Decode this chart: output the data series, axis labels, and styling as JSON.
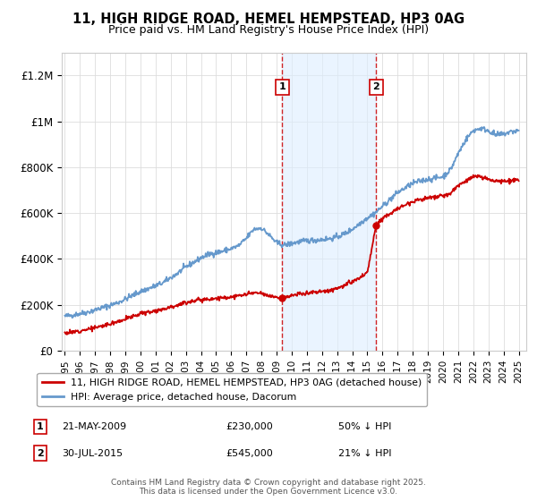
{
  "title": "11, HIGH RIDGE ROAD, HEMEL HEMPSTEAD, HP3 0AG",
  "subtitle": "Price paid vs. HM Land Registry's House Price Index (HPI)",
  "ylabel_ticks": [
    "£0",
    "£200K",
    "£400K",
    "£600K",
    "£800K",
    "£1M",
    "£1.2M"
  ],
  "ytick_values": [
    0,
    200000,
    400000,
    600000,
    800000,
    1000000,
    1200000
  ],
  "ylim": [
    0,
    1300000
  ],
  "xlim_start": 1994.8,
  "xlim_end": 2025.5,
  "red_line_color": "#cc0000",
  "blue_line_color": "#6699cc",
  "blue_fill_color": "#ddeeff",
  "transaction1_x": 2009.37,
  "transaction1_y": 230000,
  "transaction2_x": 2015.58,
  "transaction2_y": 545000,
  "legend_red_label": "11, HIGH RIDGE ROAD, HEMEL HEMPSTEAD, HP3 0AG (detached house)",
  "legend_blue_label": "HPI: Average price, detached house, Dacorum",
  "table_data": [
    {
      "num": "1",
      "date": "21-MAY-2009",
      "price": "£230,000",
      "pct": "50% ↓ HPI"
    },
    {
      "num": "2",
      "date": "30-JUL-2015",
      "price": "£545,000",
      "pct": "21% ↓ HPI"
    }
  ],
  "footer": "Contains HM Land Registry data © Crown copyright and database right 2025.\nThis data is licensed under the Open Government Licence v3.0.",
  "background_color": "#ffffff",
  "hpi_years": [
    1995,
    1995.5,
    1996,
    1996.5,
    1997,
    1997.5,
    1998,
    1998.5,
    1999,
    1999.5,
    2000,
    2000.5,
    2001,
    2001.5,
    2002,
    2002.5,
    2003,
    2003.5,
    2004,
    2004.5,
    2005,
    2005.5,
    2006,
    2006.5,
    2007,
    2007.5,
    2008,
    2008.5,
    2009,
    2009.5,
    2010,
    2010.5,
    2011,
    2011.5,
    2012,
    2012.5,
    2013,
    2013.5,
    2014,
    2014.5,
    2015,
    2015.5,
    2016,
    2016.5,
    2017,
    2017.5,
    2018,
    2018.5,
    2019,
    2019.5,
    2020,
    2020.5,
    2021,
    2021.5,
    2022,
    2022.5,
    2023,
    2023.5,
    2024,
    2024.5,
    2025
  ],
  "hpi_vals": [
    150000,
    155000,
    162000,
    168000,
    178000,
    188000,
    198000,
    210000,
    225000,
    242000,
    258000,
    270000,
    283000,
    296000,
    318000,
    340000,
    365000,
    385000,
    405000,
    420000,
    428000,
    435000,
    445000,
    458000,
    490000,
    530000,
    535000,
    505000,
    470000,
    460000,
    468000,
    475000,
    480000,
    482000,
    485000,
    488000,
    496000,
    510000,
    530000,
    555000,
    580000,
    600000,
    630000,
    660000,
    690000,
    710000,
    730000,
    740000,
    748000,
    752000,
    760000,
    790000,
    860000,
    920000,
    960000,
    970000,
    960000,
    940000,
    945000,
    955000,
    960000
  ],
  "red_years": [
    1995,
    1995.5,
    1996,
    1996.5,
    1997,
    1997.5,
    1998,
    1998.5,
    1999,
    1999.5,
    2000,
    2000.5,
    2001,
    2001.5,
    2002,
    2002.5,
    2003,
    2003.5,
    2004,
    2004.5,
    2005,
    2005.5,
    2006,
    2006.5,
    2007,
    2007.5,
    2008,
    2008.5,
    2009.0,
    2009.37,
    2009.38,
    2009.5,
    2010,
    2010.5,
    2011,
    2011.5,
    2012,
    2012.5,
    2013,
    2013.5,
    2014,
    2014.5,
    2015.0,
    2015.57,
    2015.58,
    2016,
    2016.5,
    2017,
    2017.5,
    2018,
    2018.5,
    2019,
    2019.5,
    2020,
    2020.5,
    2021,
    2021.5,
    2022,
    2022.5,
    2023,
    2023.5,
    2024,
    2024.5,
    2025
  ],
  "red_vals": [
    78000,
    80000,
    88000,
    94000,
    100000,
    108000,
    118000,
    128000,
    138000,
    150000,
    162000,
    168000,
    175000,
    182000,
    192000,
    200000,
    210000,
    218000,
    222000,
    226000,
    228000,
    230000,
    234000,
    238000,
    246000,
    252000,
    248000,
    238000,
    236000,
    230000,
    230000,
    232000,
    240000,
    246000,
    252000,
    255000,
    258000,
    263000,
    272000,
    285000,
    300000,
    318000,
    340000,
    545000,
    545000,
    580000,
    598000,
    618000,
    638000,
    652000,
    660000,
    665000,
    670000,
    675000,
    685000,
    720000,
    740000,
    760000,
    755000,
    748000,
    742000,
    738000,
    740000,
    745000
  ]
}
